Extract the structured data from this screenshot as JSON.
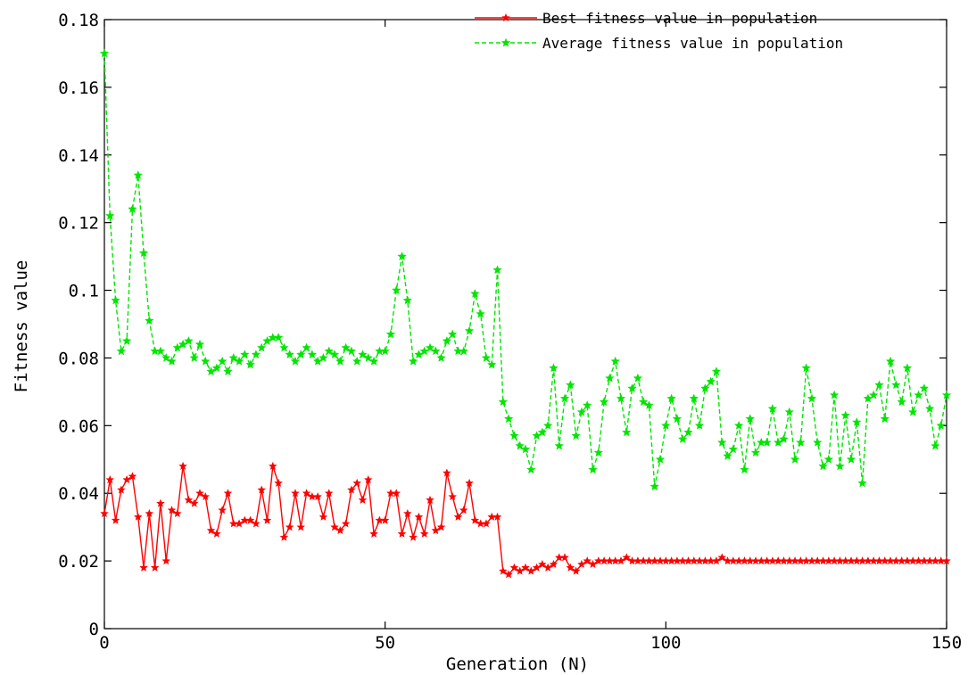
{
  "chart_data": {
    "type": "line",
    "xlabel": "Generation (N)",
    "ylabel": "Fitness value",
    "xlim": [
      0,
      150
    ],
    "ylim": [
      0,
      0.18
    ],
    "xticks": [
      0,
      50,
      100,
      150
    ],
    "xtick_labels": [
      "0",
      "50",
      "100",
      "150"
    ],
    "yticks": [
      0,
      0.02,
      0.04,
      0.06,
      0.08,
      0.1,
      0.12,
      0.14,
      0.16,
      0.18
    ],
    "ytick_labels": [
      "0",
      "0.02",
      "0.04",
      "0.06",
      "0.08",
      "0.1",
      "0.12",
      "0.14",
      "0.16",
      "0.18"
    ],
    "grid": false,
    "legend_position": "top-right",
    "x": [
      0,
      1,
      2,
      3,
      4,
      5,
      6,
      7,
      8,
      9,
      10,
      11,
      12,
      13,
      14,
      15,
      16,
      17,
      18,
      19,
      20,
      21,
      22,
      23,
      24,
      25,
      26,
      27,
      28,
      29,
      30,
      31,
      32,
      33,
      34,
      35,
      36,
      37,
      38,
      39,
      40,
      41,
      42,
      43,
      44,
      45,
      46,
      47,
      48,
      49,
      50,
      51,
      52,
      53,
      54,
      55,
      56,
      57,
      58,
      59,
      60,
      61,
      62,
      63,
      64,
      65,
      66,
      67,
      68,
      69,
      70,
      71,
      72,
      73,
      74,
      75,
      76,
      77,
      78,
      79,
      80,
      81,
      82,
      83,
      84,
      85,
      86,
      87,
      88,
      89,
      90,
      91,
      92,
      93,
      94,
      95,
      96,
      97,
      98,
      99,
      100,
      101,
      102,
      103,
      104,
      105,
      106,
      107,
      108,
      109,
      110,
      111,
      112,
      113,
      114,
      115,
      116,
      117,
      118,
      119,
      120,
      121,
      122,
      123,
      124,
      125,
      126,
      127,
      128,
      129,
      130,
      131,
      132,
      133,
      134,
      135,
      136,
      137,
      138,
      139,
      140,
      141,
      142,
      143,
      144,
      145,
      146,
      147,
      148,
      149,
      150
    ],
    "series": [
      {
        "name": "Best fitness value in population",
        "color": "#ff0000",
        "line_style": "solid",
        "values": [
          0.034,
          0.044,
          0.032,
          0.041,
          0.044,
          0.045,
          0.033,
          0.018,
          0.034,
          0.018,
          0.037,
          0.02,
          0.035,
          0.034,
          0.048,
          0.038,
          0.037,
          0.04,
          0.039,
          0.029,
          0.028,
          0.035,
          0.04,
          0.031,
          0.031,
          0.032,
          0.032,
          0.031,
          0.041,
          0.032,
          0.048,
          0.043,
          0.027,
          0.03,
          0.04,
          0.03,
          0.04,
          0.039,
          0.039,
          0.033,
          0.04,
          0.03,
          0.029,
          0.031,
          0.041,
          0.043,
          0.038,
          0.044,
          0.028,
          0.032,
          0.032,
          0.04,
          0.04,
          0.028,
          0.034,
          0.027,
          0.033,
          0.028,
          0.038,
          0.029,
          0.03,
          0.046,
          0.039,
          0.033,
          0.035,
          0.043,
          0.032,
          0.031,
          0.031,
          0.033,
          0.033,
          0.017,
          0.016,
          0.018,
          0.017,
          0.018,
          0.017,
          0.018,
          0.019,
          0.018,
          0.019,
          0.021,
          0.021,
          0.018,
          0.017,
          0.019,
          0.02,
          0.019,
          0.02,
          0.02,
          0.02,
          0.02,
          0.02,
          0.021,
          0.02,
          0.02,
          0.02,
          0.02,
          0.02,
          0.02,
          0.02,
          0.02,
          0.02,
          0.02,
          0.02,
          0.02,
          0.02,
          0.02,
          0.02,
          0.02,
          0.021,
          0.02,
          0.02,
          0.02,
          0.02,
          0.02,
          0.02,
          0.02,
          0.02,
          0.02,
          0.02,
          0.02,
          0.02,
          0.02,
          0.02,
          0.02,
          0.02,
          0.02,
          0.02,
          0.02,
          0.02,
          0.02,
          0.02,
          0.02,
          0.02,
          0.02,
          0.02,
          0.02,
          0.02,
          0.02,
          0.02,
          0.02,
          0.02,
          0.02,
          0.02,
          0.02,
          0.02,
          0.02,
          0.02,
          0.02,
          0.02
        ]
      },
      {
        "name": "Average fitness value in population",
        "color": "#00e600",
        "line_style": "dashed",
        "values": [
          0.17,
          0.122,
          0.097,
          0.082,
          0.085,
          0.124,
          0.134,
          0.111,
          0.091,
          0.082,
          0.082,
          0.08,
          0.079,
          0.083,
          0.084,
          0.085,
          0.08,
          0.084,
          0.079,
          0.076,
          0.077,
          0.079,
          0.076,
          0.08,
          0.079,
          0.081,
          0.078,
          0.081,
          0.083,
          0.085,
          0.086,
          0.086,
          0.083,
          0.081,
          0.079,
          0.081,
          0.083,
          0.081,
          0.079,
          0.08,
          0.082,
          0.081,
          0.079,
          0.083,
          0.082,
          0.079,
          0.081,
          0.08,
          0.079,
          0.082,
          0.082,
          0.087,
          0.1,
          0.11,
          0.097,
          0.079,
          0.081,
          0.082,
          0.083,
          0.082,
          0.08,
          0.085,
          0.087,
          0.082,
          0.082,
          0.088,
          0.099,
          0.093,
          0.08,
          0.078,
          0.106,
          0.067,
          0.062,
          0.057,
          0.054,
          0.053,
          0.047,
          0.057,
          0.058,
          0.06,
          0.077,
          0.054,
          0.068,
          0.072,
          0.057,
          0.064,
          0.066,
          0.047,
          0.052,
          0.067,
          0.074,
          0.079,
          0.068,
          0.058,
          0.071,
          0.074,
          0.067,
          0.066,
          0.042,
          0.05,
          0.06,
          0.068,
          0.062,
          0.056,
          0.058,
          0.068,
          0.06,
          0.071,
          0.073,
          0.076,
          0.055,
          0.051,
          0.053,
          0.06,
          0.047,
          0.062,
          0.052,
          0.055,
          0.055,
          0.065,
          0.055,
          0.056,
          0.064,
          0.05,
          0.055,
          0.077,
          0.068,
          0.055,
          0.048,
          0.05,
          0.069,
          0.048,
          0.063,
          0.05,
          0.061,
          0.043,
          0.068,
          0.069,
          0.072,
          0.062,
          0.079,
          0.072,
          0.067,
          0.077,
          0.064,
          0.069,
          0.071,
          0.065,
          0.054,
          0.06,
          0.069
        ]
      }
    ]
  }
}
